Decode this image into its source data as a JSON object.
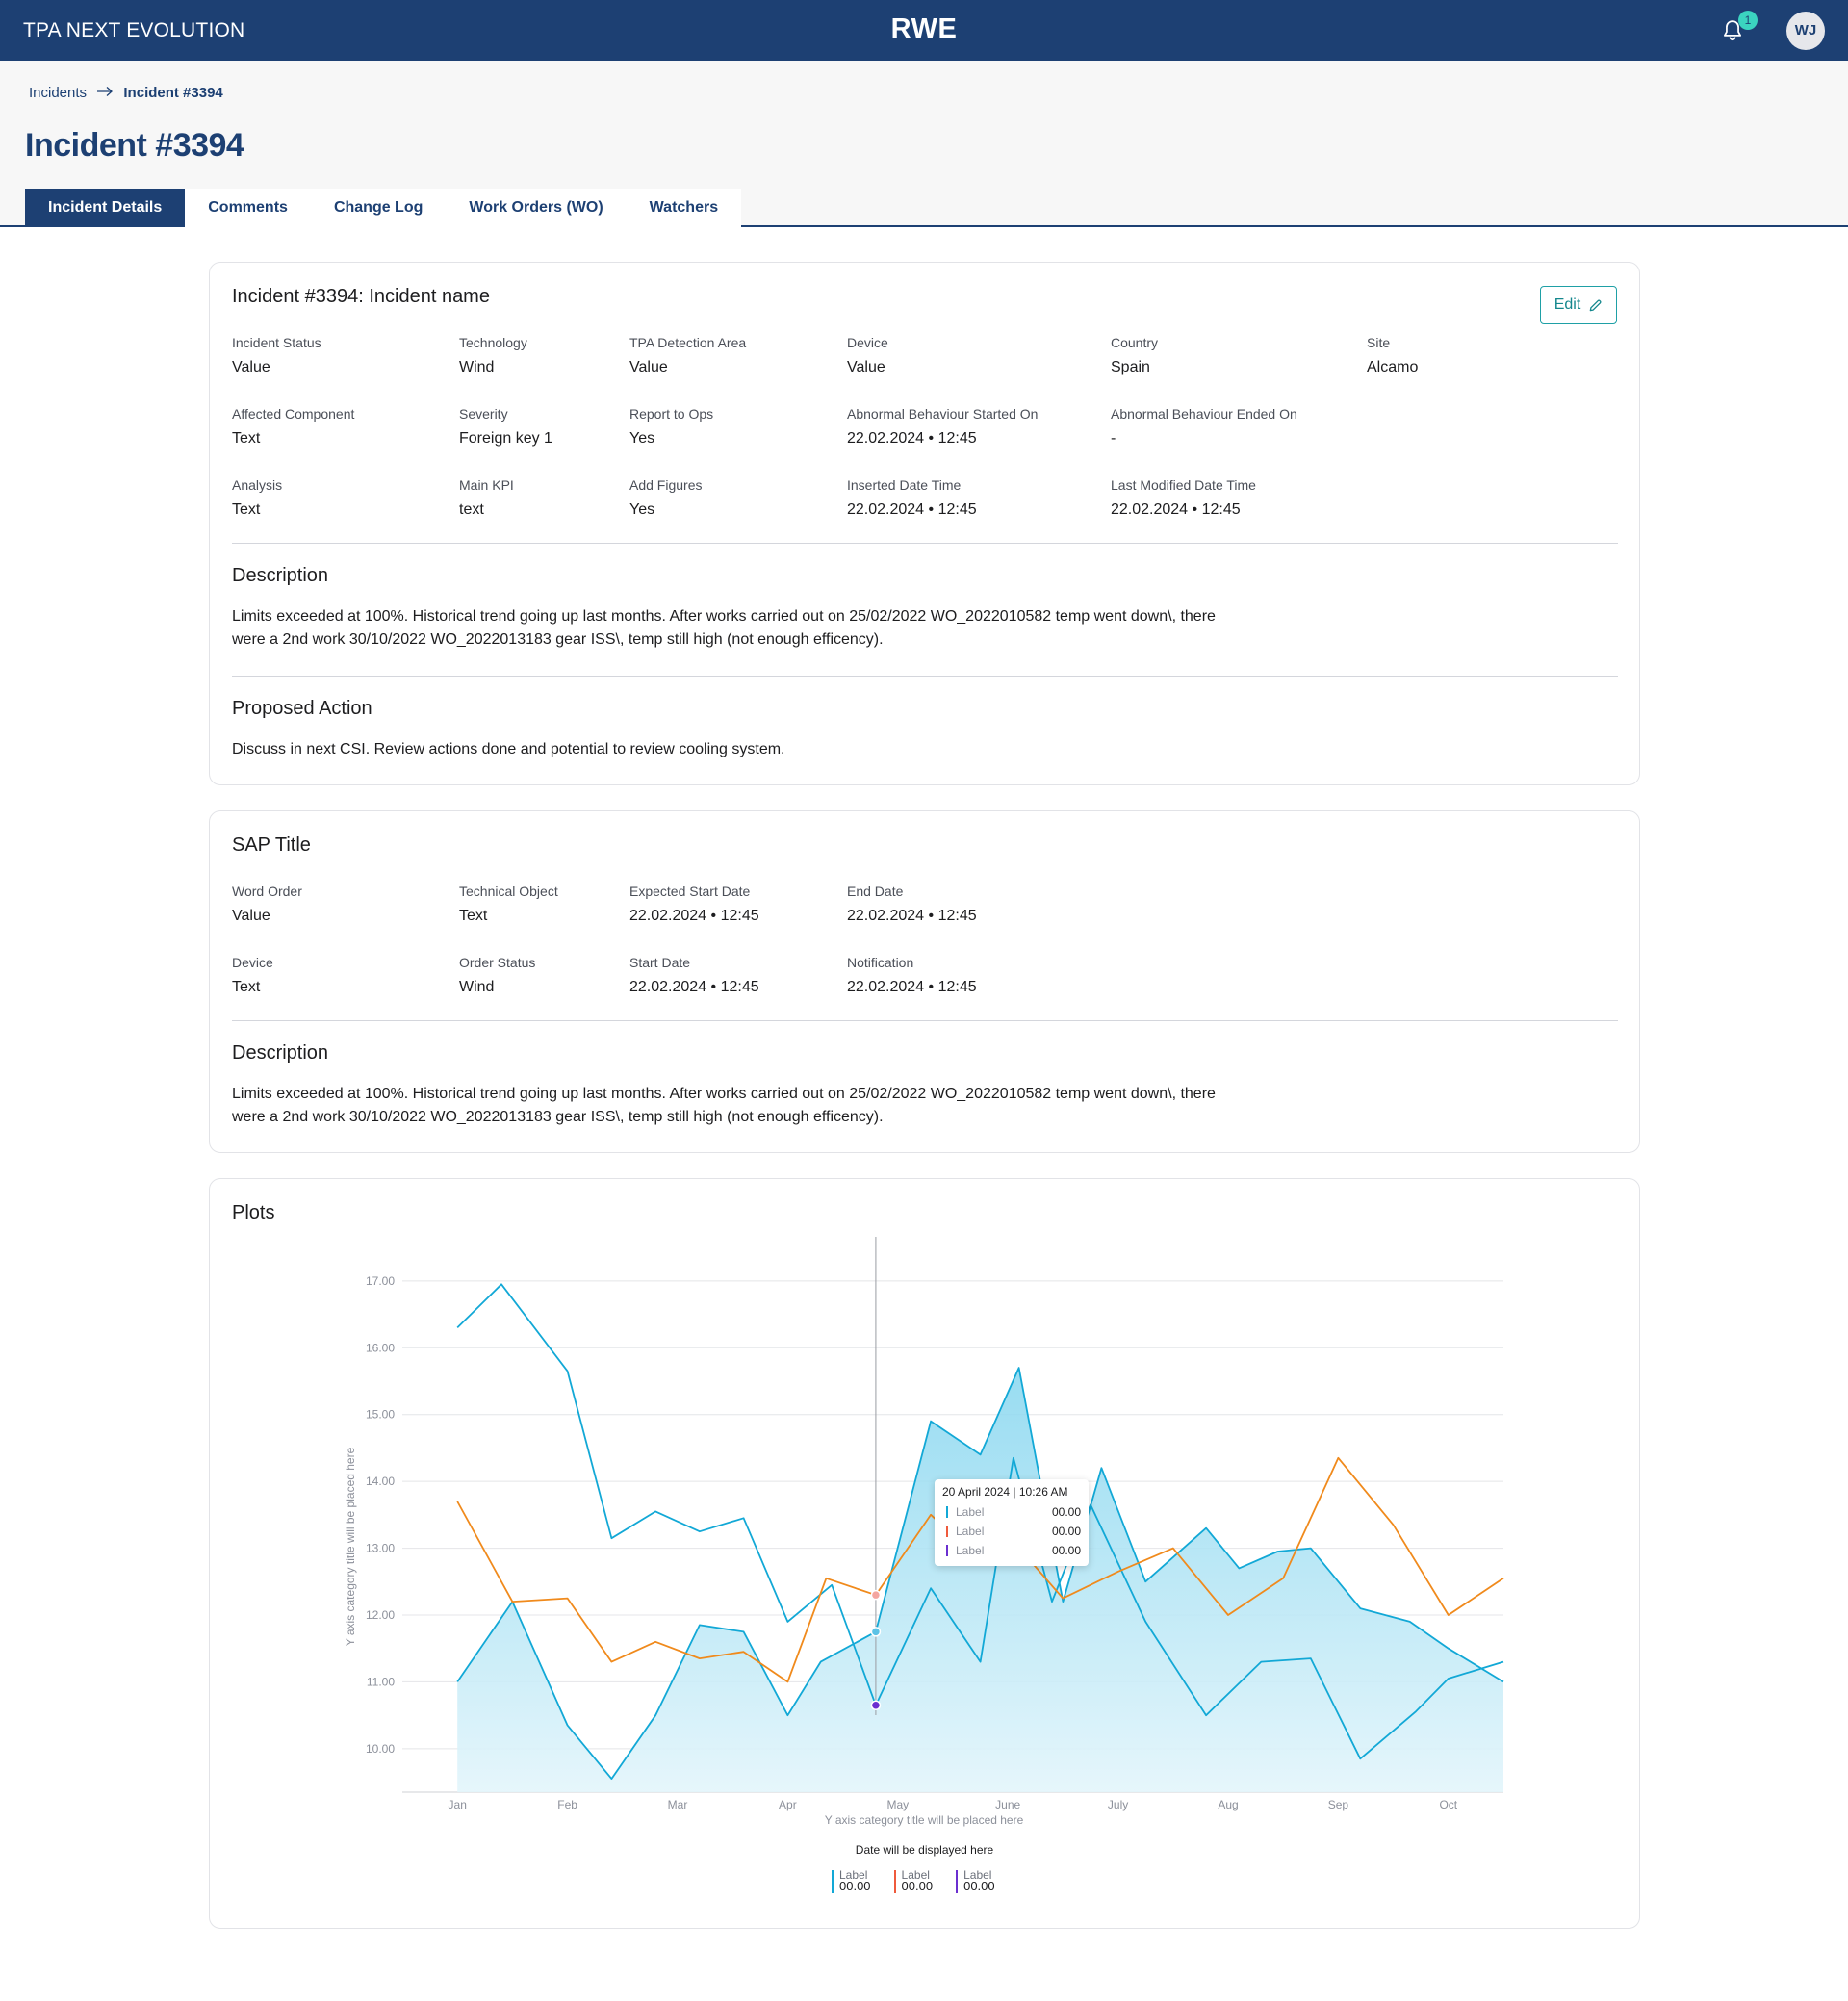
{
  "app": {
    "title": "TPA NEXT EVOLUTION",
    "logo": "RWE",
    "notification_count": "1",
    "user_initials": "WJ"
  },
  "breadcrumb": {
    "parent": "Incidents",
    "current": "Incident #3394"
  },
  "page_title": "Incident #3394",
  "tabs": [
    {
      "label": "Incident Details",
      "active": true
    },
    {
      "label": "Comments",
      "active": false
    },
    {
      "label": "Change Log",
      "active": false
    },
    {
      "label": "Work Orders (WO)",
      "active": false
    },
    {
      "label": "Watchers",
      "active": false
    }
  ],
  "incident": {
    "title": "Incident #3394: Incident name",
    "edit_label": "Edit",
    "fields": [
      {
        "label": "Incident Status",
        "value": "Value"
      },
      {
        "label": "Technology",
        "value": "Wind"
      },
      {
        "label": "TPA Detection Area",
        "value": "Value"
      },
      {
        "label": "Device",
        "value": "Value"
      },
      {
        "label": "Country",
        "value": "Spain"
      },
      {
        "label": "Site",
        "value": "Alcamo"
      },
      {
        "label": "Affected Component",
        "value": "Text"
      },
      {
        "label": "Severity",
        "value": "Foreign key 1"
      },
      {
        "label": "Report to Ops",
        "value": "Yes"
      },
      {
        "label": "Abnormal Behaviour Started On",
        "value": "22.02.2024 • 12:45"
      },
      {
        "label": "Abnormal Behaviour Ended On",
        "value": "-"
      },
      {
        "label": "Analysis",
        "value": "Text"
      },
      {
        "label": "Main KPI",
        "value": "text"
      },
      {
        "label": "Add Figures",
        "value": "Yes"
      },
      {
        "label": "Inserted Date Time",
        "value": "22.02.2024 • 12:45"
      },
      {
        "label": "Last Modified Date Time",
        "value": "22.02.2024 • 12:45"
      }
    ],
    "description_title": "Description",
    "description": "Limits exceeded at 100%. Historical trend going up last months. After works carried out on 25/02/2022 WO_2022010582 temp went down\\, there were a 2nd work 30/10/2022 WO_2022013183 gear ISS\\, temp still high (not enough efficency).",
    "action_title": "Proposed Action",
    "action": "Discuss in next CSI. Review actions done and potential to review cooling system."
  },
  "sap": {
    "title": "SAP Title",
    "fields": [
      {
        "label": "Word Order",
        "value": "Value"
      },
      {
        "label": "Technical Object",
        "value": "Text"
      },
      {
        "label": "Expected Start Date",
        "value": "22.02.2024 • 12:45"
      },
      {
        "label": "End Date",
        "value": "22.02.2024 • 12:45"
      },
      {
        "label": "Device",
        "value": "Text"
      },
      {
        "label": "Order Status",
        "value": "Wind"
      },
      {
        "label": "Start Date",
        "value": "22.02.2024 • 12:45"
      },
      {
        "label": "Notification",
        "value": "22.02.2024 • 12:45"
      }
    ],
    "description_title": "Description",
    "description": "Limits exceeded at 100%. Historical trend going up last months. After works carried out on 25/02/2022 WO_2022010582 temp went down\\, there were a 2nd work 30/10/2022 WO_2022013183 gear ISS\\, temp still high (not enough efficency)."
  },
  "plots": {
    "title": "Plots",
    "legend_title": "Date will be displayed here",
    "legend": [
      {
        "label": "Label",
        "value": "00.00",
        "color": "#12a8d6"
      },
      {
        "label": "Label",
        "value": "00.00",
        "color": "#ef5a3c"
      },
      {
        "label": "Label",
        "value": "00.00",
        "color": "#6b2fd0"
      }
    ],
    "tooltip": {
      "title": "20 April 2024 | 10:26 AM",
      "rows": [
        {
          "label": "Label",
          "value": "00.00",
          "color": "#12a8d6"
        },
        {
          "label": "Label",
          "value": "00.00",
          "color": "#ef5a3c"
        },
        {
          "label": "Label",
          "value": "00.00",
          "color": "#6b2fd0"
        }
      ]
    }
  },
  "chart_data": {
    "type": "line",
    "title": "",
    "xlabel": "Y axis category title will be placed here",
    "ylabel": "Y axis category title will be placed here",
    "categories": [
      "Jan",
      "Feb",
      "Mar",
      "Apr",
      "May",
      "June",
      "July",
      "Aug",
      "Sep",
      "Oct"
    ],
    "ylim": [
      9.35,
      17.3
    ],
    "yticks": [
      "10.00",
      "11.00",
      "12.00",
      "13.00",
      "14.00",
      "15.00",
      "16.00",
      "17.00"
    ],
    "grid": true,
    "series": [
      {
        "color": "#12a8d6",
        "x": [
          0.5,
          0.9,
          1.5,
          1.9,
          2.3,
          2.7,
          3.1,
          3.5,
          3.9,
          4.3,
          4.8,
          5.25,
          5.55,
          5.9,
          6.25,
          6.75,
          7.3,
          7.8,
          8.25,
          8.7,
          9.2,
          9.5,
          10.0
        ],
        "y": [
          16.3,
          16.95,
          15.65,
          13.15,
          13.55,
          13.25,
          13.45,
          11.9,
          12.45,
          10.65,
          12.4,
          11.3,
          14.35,
          12.2,
          13.65,
          11.9,
          10.5,
          11.3,
          11.35,
          9.85,
          10.55,
          11.05,
          11.3
        ]
      },
      {
        "color": "#12a8d6",
        "area": true,
        "x": [
          0.5,
          1.0,
          1.5,
          1.9,
          2.3,
          2.7,
          3.1,
          3.5,
          3.8,
          4.3,
          4.8,
          5.25,
          5.6,
          6.0,
          6.35,
          6.75,
          7.3,
          7.6,
          7.95,
          8.25,
          8.7,
          9.15,
          9.5,
          10.0
        ],
        "y": [
          11.0,
          12.2,
          10.35,
          9.55,
          10.5,
          11.85,
          11.75,
          10.5,
          11.3,
          11.75,
          14.9,
          14.4,
          15.7,
          12.2,
          14.2,
          12.5,
          13.3,
          12.7,
          12.95,
          13.0,
          12.1,
          11.9,
          11.5,
          11.0
        ]
      },
      {
        "color": "#f08a1c",
        "x": [
          0.5,
          1.0,
          1.5,
          1.9,
          2.3,
          2.7,
          3.1,
          3.5,
          3.85,
          4.3,
          4.8,
          5.25,
          5.55,
          6.0,
          6.5,
          7.0,
          7.5,
          8.0,
          8.5,
          9.0,
          9.5,
          10.0
        ],
        "y": [
          13.7,
          12.2,
          12.25,
          11.3,
          11.6,
          11.35,
          11.45,
          11.0,
          12.55,
          12.3,
          13.5,
          12.8,
          13.1,
          12.25,
          12.65,
          13.0,
          12.0,
          12.55,
          14.35,
          13.35,
          12.0,
          12.55
        ]
      }
    ],
    "cursor_x": 4.3
  }
}
